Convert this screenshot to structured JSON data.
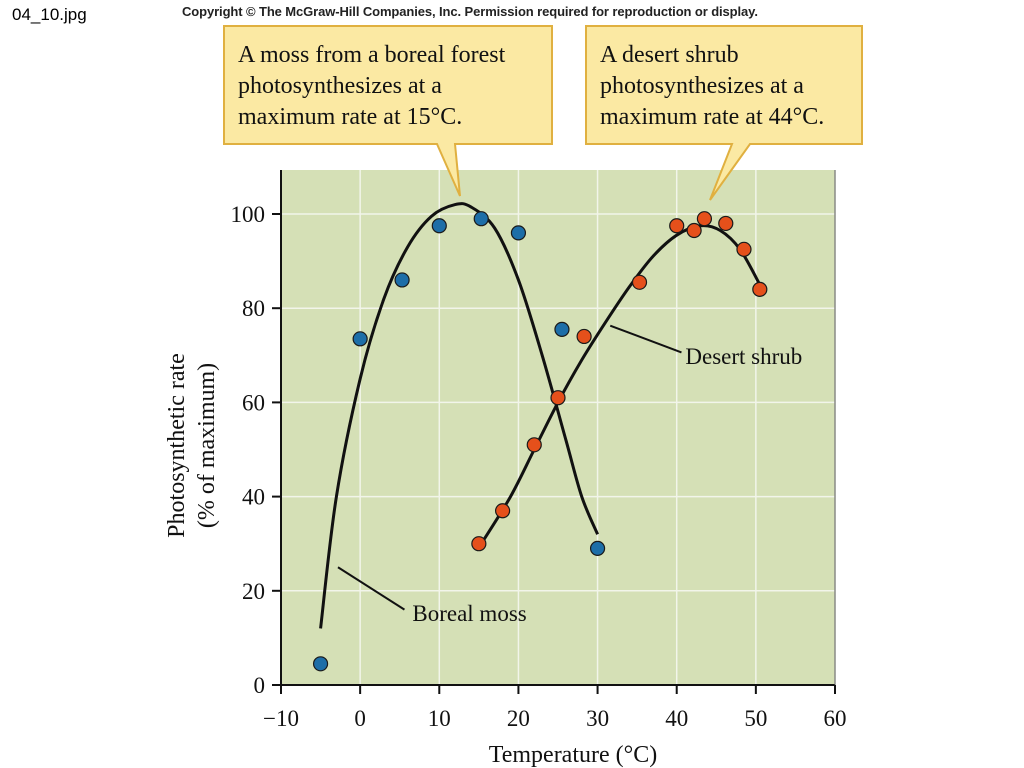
{
  "file_label": "04_10.jpg",
  "copyright": "Copyright © The McGraw-Hill Companies, Inc. Permission required for reproduction or display.",
  "colors": {
    "plot_background": "#d5e0b6",
    "grid": "#f2f5ea",
    "callout_fill": "#fbe9a3",
    "callout_border": "#e0b040",
    "moss_point": "#1d6ea8",
    "shrub_point": "#e5501b",
    "curve": "#111111"
  },
  "chart_data": {
    "type": "scatter",
    "xlabel": "Temperature (°C)",
    "ylabel_lines": [
      "Photosynthetic rate",
      "(% of maximum)"
    ],
    "xlim": [
      -10,
      60
    ],
    "ylim": [
      0,
      110
    ],
    "xticks": [
      -10,
      0,
      10,
      20,
      30,
      40,
      50,
      60
    ],
    "xtick_labels": [
      "−10",
      "0",
      "10",
      "20",
      "30",
      "40",
      "50",
      "60"
    ],
    "yticks": [
      0,
      20,
      40,
      60,
      80,
      100
    ],
    "ytick_labels": [
      "0",
      "20",
      "40",
      "60",
      "80",
      "100"
    ],
    "grid": true,
    "series": [
      {
        "name": "Boreal moss",
        "color": "#1d6ea8",
        "points": [
          [
            -5,
            4.5
          ],
          [
            0,
            73.5
          ],
          [
            5.3,
            86
          ],
          [
            10,
            97.5
          ],
          [
            15.3,
            99
          ],
          [
            20,
            96
          ],
          [
            25.5,
            75.5
          ],
          [
            30,
            29
          ]
        ],
        "curve": [
          [
            -5,
            12
          ],
          [
            -3,
            40
          ],
          [
            0,
            65
          ],
          [
            3,
            82
          ],
          [
            6,
            93
          ],
          [
            9,
            99.5
          ],
          [
            12,
            102
          ],
          [
            14,
            101.5
          ],
          [
            17,
            97
          ],
          [
            20,
            86
          ],
          [
            23,
            70
          ],
          [
            26,
            52
          ],
          [
            28,
            40
          ],
          [
            30,
            32
          ]
        ]
      },
      {
        "name": "Desert shrub",
        "color": "#e5501b",
        "points": [
          [
            15,
            30
          ],
          [
            18,
            37
          ],
          [
            22,
            51
          ],
          [
            25,
            61
          ],
          [
            28.3,
            74
          ],
          [
            35.3,
            85.5
          ],
          [
            40,
            97.5
          ],
          [
            42.2,
            96.5
          ],
          [
            43.5,
            99
          ],
          [
            46.2,
            98
          ],
          [
            48.5,
            92.5
          ],
          [
            50.5,
            84
          ]
        ],
        "curve": [
          [
            15.5,
            30.5
          ],
          [
            19,
            40
          ],
          [
            22,
            50
          ],
          [
            25,
            60
          ],
          [
            28,
            69
          ],
          [
            31,
            77
          ],
          [
            34,
            84.5
          ],
          [
            37,
            91
          ],
          [
            40,
            95.5
          ],
          [
            43,
            97.5
          ],
          [
            45.5,
            96.5
          ],
          [
            48,
            92.5
          ],
          [
            50.5,
            85
          ]
        ]
      }
    ],
    "annotations": [
      {
        "text": "Boreal moss",
        "series": "Boreal moss"
      },
      {
        "text": "Desert shrub",
        "series": "Desert shrub"
      }
    ]
  },
  "callouts": [
    {
      "lines": [
        "A moss from a boreal forest",
        "photosynthesizes at a",
        "maximum rate at 15°C."
      ]
    },
    {
      "lines": [
        "A desert shrub",
        "photosynthesizes at a",
        "maximum rate at 44°C."
      ]
    }
  ]
}
